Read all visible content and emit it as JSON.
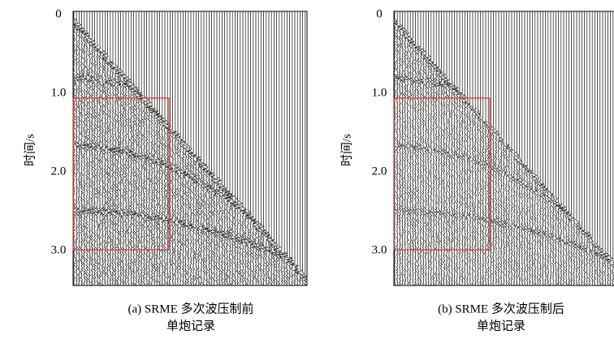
{
  "panels": [
    {
      "y_label": "时间/s",
      "ticks": [
        "0",
        "1.0",
        "2.0",
        "3.0"
      ],
      "caption": [
        "(a) SRME 多次波压制前",
        "单炮记录"
      ]
    },
    {
      "y_label": "时间/s",
      "ticks": [
        "0",
        "1.0",
        "2.0",
        "3.0"
      ],
      "caption": [
        "(b) SRME 多次波压制后",
        "单炮记录"
      ]
    }
  ]
}
